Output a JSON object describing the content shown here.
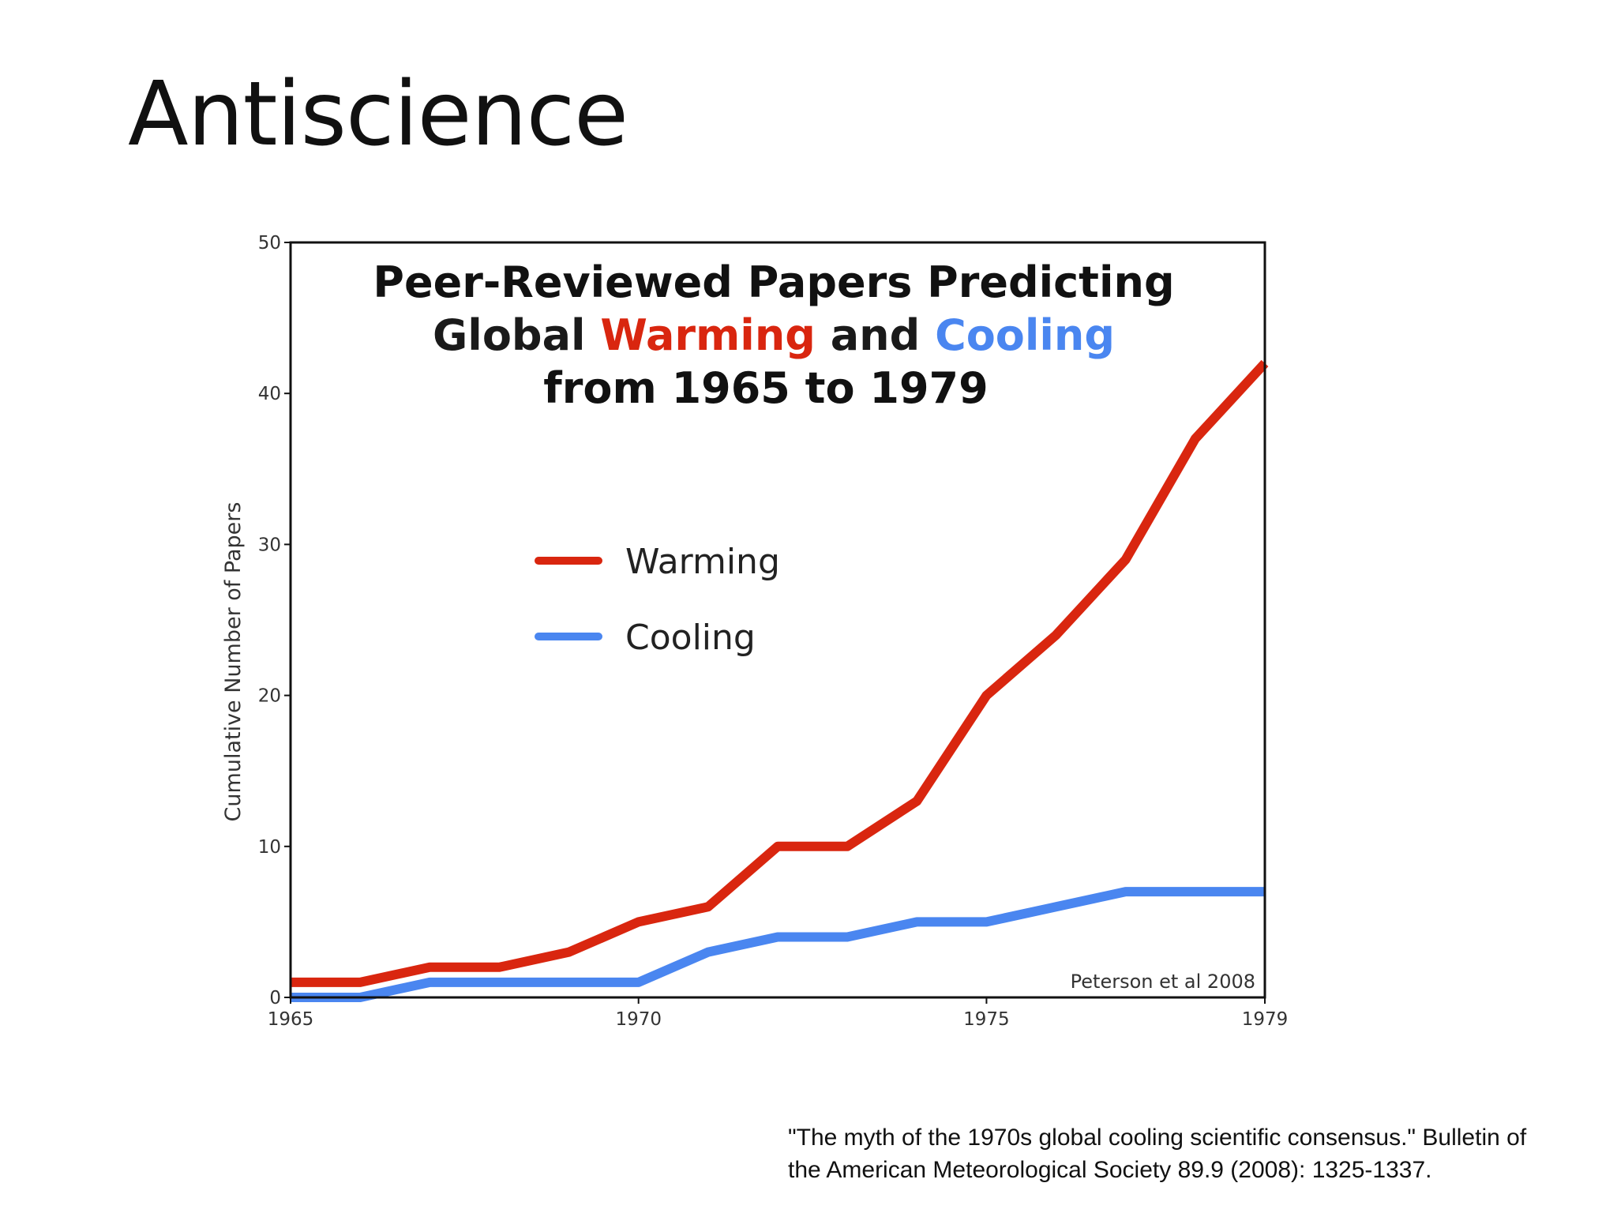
{
  "slide": {
    "title": "Antiscience",
    "citation_line1": "\"The myth of the 1970s global cooling scientific consensus.\" Bulletin of",
    "citation_line2": "the American Meteorological Society 89.9 (2008): 1325-1337."
  },
  "colors": {
    "warming": "#d9260f",
    "cooling": "#4a86f0",
    "frame": "#111111"
  },
  "chart_data": {
    "type": "line",
    "title_line1": "Peer-Reviewed Papers Predicting",
    "title_line2_parts": [
      {
        "text": "Global ",
        "color": "#1a1a1a"
      },
      {
        "text": "Warming",
        "color": "#d9260f"
      },
      {
        "text": " and ",
        "color": "#1a1a1a"
      },
      {
        "text": "Cooling",
        "color": "#4a86f0"
      }
    ],
    "title_line3": "from 1965 to 1979",
    "ylabel": "Cumulative Number of Papers",
    "xlabel": "",
    "xlim": [
      1965,
      1979
    ],
    "ylim": [
      0,
      50
    ],
    "xticks": [
      "1965",
      "1970",
      "1975",
      "1979"
    ],
    "yticks": [
      "0",
      "10",
      "20",
      "30",
      "40",
      "50"
    ],
    "credit": "Peterson et al 2008",
    "legend_position": "center-left",
    "x": [
      1965,
      1966,
      1967,
      1968,
      1969,
      1970,
      1971,
      1972,
      1973,
      1974,
      1975,
      1976,
      1977,
      1978,
      1979
    ],
    "series": [
      {
        "name": "Warming",
        "color": "#d9260f",
        "values": [
          1,
          1,
          2,
          2,
          3,
          5,
          6,
          10,
          10,
          13,
          20,
          24,
          29,
          37,
          42
        ]
      },
      {
        "name": "Cooling",
        "color": "#4a86f0",
        "values": [
          0,
          0,
          1,
          1,
          1,
          1,
          3,
          4,
          4,
          5,
          5,
          6,
          7,
          7,
          7
        ]
      }
    ]
  }
}
